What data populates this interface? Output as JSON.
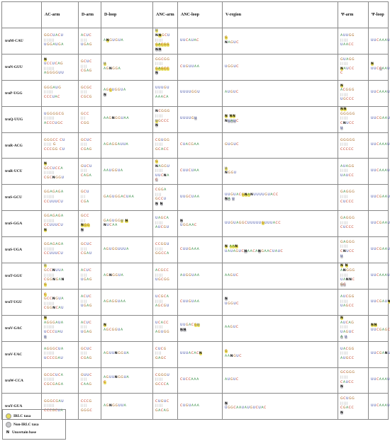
{
  "columns": [
    "",
    "AC-arm",
    "D-arm",
    "D-loop",
    "ANC-arm",
    "ANC-loop",
    "V-region",
    "Ψ-arm",
    "Ψ-loop"
  ],
  "colors": {
    "A": "#1f7f2f",
    "G": "#a05a0c",
    "U": "#2c3c9c",
    "C": "#c0341c",
    "N": "#111111",
    "irlc": "#e6dc5c",
    "non_irlc": "#c8c8cc"
  },
  "rows": [
    {
      "name": "trnM-CAU",
      "cells": [
        [
          "GGCUACU",
          "|||||||",
          "UGGAUGA"
        ],
        [
          "ACUC",
          "||||",
          "UGAG"
        ],
        [
          "A{y:N}GUGUA"
        ],
        [
          "{y:U}",
          "N{y:N}GCU",
          "|||||",
          "{y:GACGG}",
          "{g:NN}"
        ],
        [
          "UUCAUAC"
        ],
        [
          "{y:G}",
          "NAGUC"
        ],
        [
          "AUUGG",
          "|||||",
          "UAACC"
        ],
        [
          "UUCAAAU"
        ]
      ]
    },
    {
      "name": "trnN-GUU",
      "cells": [
        [
          "{y:N}",
          "UCCUCAG",
          "|||||||",
          "AGGGGUU"
        ],
        [
          "GCUC",
          "||||",
          "CGAG"
        ],
        [
          "{y:U}",
          "AGNGGA"
        ],
        [
          "GGCGG",
          "|||||",
          "{y:GAGCC}",
          "{g:N}"
        ],
        [
          "CUGUUAA"
        ],
        [
          "UGGUC"
        ],
        [
          "GUAGG",
          "|||||",
          "{y:N}AUCC",
          "C"
        ],
        [
          "{y:N}",
          "UUC{g:C}AAU"
        ]
      ]
    },
    {
      "name": "trnP-UGG",
      "cells": [
        [
          "GGGAUG",
          "||||||",
          "CCCUAC"
        ],
        [
          "GCGC",
          "||||",
          "CGCG"
        ],
        [
          "AG{y:C}UGGUA",
          "{g:N}"
        ],
        [
          "UUUGU",
          "|||||",
          "AAACA"
        ],
        [
          "UUUUGGU"
        ],
        [
          "AUGUC"
        ],
        [
          "{y:N}",
          "ACGGG",
          "|||||",
          "UGCCC"
        ],
        [
          "UUCAAAU"
        ]
      ]
    },
    {
      "name": "trnQ-UUG",
      "cells": [
        [
          "UGGGGCG",
          "|||||||",
          "ACCCUGC"
        ],
        [
          "GCC",
          "|||",
          "CGG"
        ],
        [
          "AAGNGGUAA"
        ],
        [
          "NCGGG",
          "|||||",
          "{y:U}GCCC",
          "{g:N}"
        ],
        [
          "UUUUG{g:U}"
        ],
        [
          "{y:N} {y:NN}",
          "N{g:UAU}C"
        ],
        [
          "{y:NN}",
          "GGGGG",
          "|||||",
          "CNUCC",
          "{g:U}"
        ],
        [
          "UUCGAAU"
        ]
      ]
    },
    {
      "name": "trnR-ACG",
      "cells": [
        [
          "GGGCC  CU",
          "|||||  G",
          "CCCGG  CU"
        ],
        [
          "GCUC",
          "||||",
          "CGAG"
        ],
        [
          "AGAGGAUUA"
        ],
        [
          "CGUGG",
          "|||||",
          "GCACC"
        ],
        [
          "CUACGAA"
        ],
        [
          "GUGUC"
        ],
        [
          "GGGGG",
          "|||||",
          "CCCCC"
        ],
        [
          "UUCAAAU"
        ]
      ]
    },
    {
      "name": "trnR-UCU",
      "cells": [
        [
          "{y:N}",
          "GCCUCCA",
          "|||||||",
          "CGCNGGU"
        ],
        [
          "GUCU",
          "||||",
          "CAGA"
        ],
        [
          "AAUGGUA"
        ],
        [
          "{y:G}",
          "NAGGU",
          "|||||",
          "UUCNA",
          "{g:C}"
        ],
        [
          "CUUCUAA"
        ],
        [
          "{y:U}",
          "NGGU"
        ],
        [
          "AUAGG",
          "|||||",
          "UAUCC"
        ],
        [
          "UUCAAAU"
        ]
      ]
    },
    {
      "name": "trnS-GCU",
      "cells": [
        [
          "GGAGAGA",
          "|||||||",
          "CCUUUCU"
        ],
        [
          "GCU",
          "|||",
          "CGA"
        ],
        [
          "GAGUGGACUAA"
        ],
        [
          "CGGA",
          "||||",
          "GCCU",
          "{g:N} {g:N}"
        ],
        [
          "UUGCUAA"
        ],
        [
          "UUGUAC{y:GNA}NUUUUGUACC",
          "{g:NA} {g:U}"
        ],
        [
          "GAGGG",
          "|||||",
          "CUCCC"
        ],
        [
          "UUCGAAU"
        ]
      ]
    },
    {
      "name": "trnS-GGA",
      "cells": [
        [
          "GGAGAGA",
          "|||||||",
          "CCUUUCU",
          "{y:N}"
        ],
        [
          "GCC",
          "|||",
          "{y:NGG}",
          "{g:N}"
        ],
        [
          "GAGUGG{y:U} {y:N}",
          "NUCAA"
        ],
        [
          "UAGCA",
          "|||||",
          "AUCGU"
        ],
        [
          "{g:N}",
          "UGGAAC"
        ],
        [
          "UUGUAGGCUUUUU{y:G}UUUACC"
        ],
        [
          "GAGGG",
          "|||||",
          "CUCCC"
        ],
        [
          "UUCGAAU"
        ]
      ]
    },
    {
      "name": "trnS-UGA",
      "cells": [
        [
          "GGAGAGA",
          "|||||||",
          "CCUUUCU"
        ],
        [
          "GCUC",
          "||||",
          "CGAU"
        ],
        [
          "AGUGGUUUA"
        ],
        [
          "CCGGU",
          "|||||",
          "GGCCA"
        ],
        [
          "CUUGAAA"
        ],
        [
          "{y:N} {y:AAN}",
          "UAUAGUC{g:N}AACA{g:N}GAACUAUC"
        ],
        [
          "GAGGG",
          "|||||",
          "CNUCC",
          "{g:U}"
        ],
        [
          "UUCGAAU"
        ]
      ]
    },
    {
      "name": "trnT-GGU",
      "cells": [
        [
          "{y:U}",
          "GCCNUUA",
          "|||||||",
          "CGGNGAN",
          "{y:G}"
        ],
        [
          "ACUC",
          "||||",
          "UGAG"
        ],
        [
          "AGNGGUA"
        ],
        [
          "ACGCC",
          "|||||",
          "UGCGG"
        ],
        [
          "AUGGUAA"
        ],
        [
          "AAGUC"
        ],
        [
          "{y:N} {y:N}",
          "ANGGG",
          "|||||",
          "UANNC",
          "{g:GC}"
        ],
        [
          "UUCAAAU"
        ]
      ]
    },
    {
      "name": "trnT-UGU",
      "cells": [
        [
          "{y:C}",
          "GCCNGUA",
          "|||||||",
          "CGGNCAU"
        ],
        [
          "ACUC",
          "||||",
          "UGAG"
        ],
        [
          "AGAGGUAA"
        ],
        [
          "UCGCA",
          "|||||",
          "AGCGU"
        ],
        [
          "CUUGUAA"
        ],
        [
          "{g:N}",
          "UGGUC"
        ],
        [
          "AUCGG",
          "|||||",
          "UAGCC"
        ],
        [
          "UUCGAU{y:N}"
        ]
      ]
    },
    {
      "name": "trnV-GAC",
      "cells": [
        [
          "{y:N}",
          "AGGGAUA",
          "|||||||",
          "UCCCUAU",
          "{g:U}"
        ],
        [
          "ACUC",
          "||||",
          "UGAG"
        ],
        [
          "{y:N}",
          "AGCGGUA"
        ],
        [
          "UCACC",
          "|||||",
          "AGUGG"
        ],
        [
          "UUGAC{y:GU}",
          "{g:NN}"
        ],
        [
          "AAGUC"
        ],
        [
          "{y:N}",
          "AUCAG",
          "|||||",
          "UAGUC",
          "{g:A} {g:U}"
        ],
        [
          "{y:NN}",
          "UUCGAGC"
        ]
      ]
    },
    {
      "name": "trnV-UAC",
      "cells": [
        [
          "AGGGCUA",
          "|||||||",
          "UCCCGAU"
        ],
        [
          "GCUC",
          "||||",
          "CGAG"
        ],
        [
          "AGUUNGGUA"
        ],
        [
          "CUCG",
          "||||",
          "GAGC"
        ],
        [
          "UUUACAC{y:N}"
        ],
        [
          "{y:G}",
          "AANGUC"
        ],
        [
          "UACGG",
          "|||||",
          "AUGCC"
        ],
        [
          "UUCGANU"
        ]
      ]
    },
    {
      "name": "trnW-CCA",
      "cells": [
        [
          "GCGCUCA",
          "|||||||",
          "CGCGAGA"
        ],
        [
          "GUUC",
          "||||",
          "CAAG"
        ],
        [
          "AGUUNGGUA",
          "{y:C}"
        ],
        [
          "CGGGU",
          "|||||",
          "GCCCA"
        ],
        [
          "CUCCAAA"
        ],
        [
          "AUGUC"
        ],
        [
          "GCGGG",
          "|||||",
          "CAUCC",
          "{g:N}"
        ],
        [
          "UUCAAAU"
        ]
      ]
    },
    {
      "name": "trnY-GUA",
      "cells": [
        [
          "GGGCGAU",
          "|||||||",
          "CCCGCUA"
        ],
        [
          "CCCG",
          "||||",
          "GGGC"
        ],
        [
          "AGNGGUUA"
        ],
        [
          "CUGUC",
          "|||||",
          "GACAG"
        ],
        [
          "CUGUAAA"
        ],
        [
          "{g:N}",
          "UGGCAAUAUGUCUAC"
        ],
        [
          "GCUGG",
          "|||||",
          "CGACC",
          "{g:N}"
        ],
        [
          "UUCAAAU"
        ]
      ]
    }
  ],
  "legend": {
    "irlc": "IRLC taxa",
    "non_irlc": "Non-IRLC taxa",
    "uncertain_symbol": "N",
    "uncertain": "Uncertain base"
  }
}
